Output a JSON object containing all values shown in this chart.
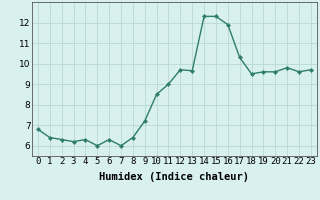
{
  "x": [
    0,
    1,
    2,
    3,
    4,
    5,
    6,
    7,
    8,
    9,
    10,
    11,
    12,
    13,
    14,
    15,
    16,
    17,
    18,
    19,
    20,
    21,
    22,
    23
  ],
  "y": [
    6.8,
    6.4,
    6.3,
    6.2,
    6.3,
    6.0,
    6.3,
    6.0,
    6.4,
    7.2,
    8.5,
    9.0,
    9.7,
    9.65,
    12.3,
    12.3,
    11.9,
    10.3,
    9.5,
    9.6,
    9.6,
    9.8,
    9.6,
    9.7
  ],
  "line_color": "#2e7d6e",
  "marker": "D",
  "marker_size": 2.0,
  "bg_color": "#d8f0ee",
  "grid_color": "#b8d8d4",
  "xlabel": "Humidex (Indice chaleur)",
  "xlim": [
    -0.5,
    23.5
  ],
  "ylim": [
    5.5,
    13.0
  ],
  "yticks": [
    6,
    7,
    8,
    9,
    10,
    11,
    12
  ],
  "xtick_labels": [
    "0",
    "1",
    "2",
    "3",
    "4",
    "5",
    "6",
    "7",
    "8",
    "9",
    "10",
    "11",
    "12",
    "13",
    "14",
    "15",
    "16",
    "17",
    "18",
    "19",
    "20",
    "21",
    "22",
    "23"
  ],
  "xlabel_fontsize": 7.5,
  "tick_fontsize": 6.5,
  "linewidth": 1.0
}
